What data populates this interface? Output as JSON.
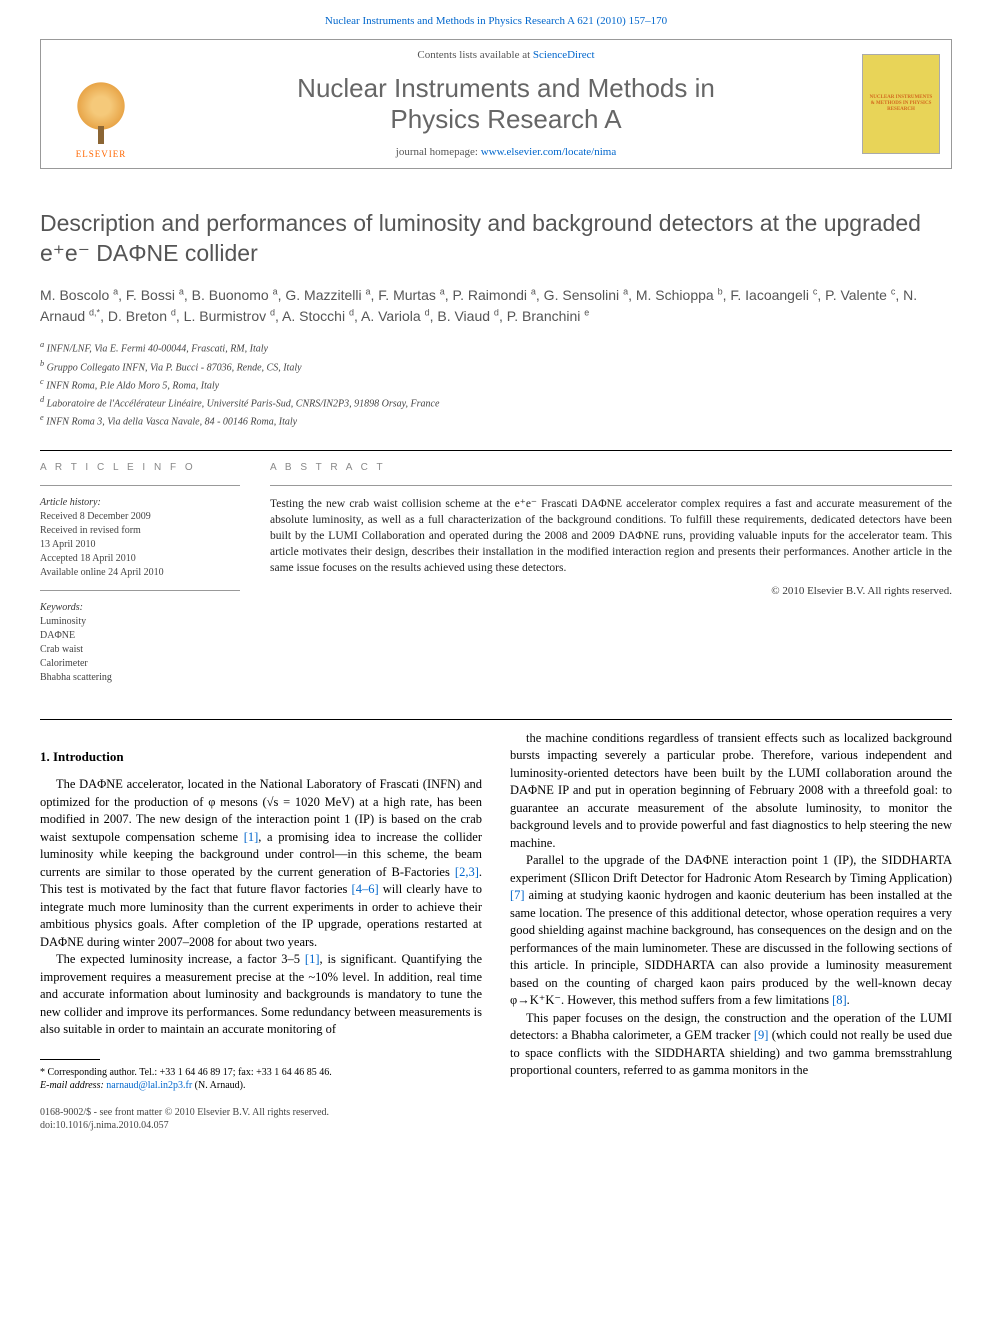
{
  "top_link_prefix": "Nuclear Instruments and Methods in Physics Research A 621 (2010) 157–170",
  "header": {
    "elsevier": "ELSEVIER",
    "contents_prefix": "Contents lists available at ",
    "contents_link": "ScienceDirect",
    "journal_name_l1": "Nuclear Instruments and Methods in",
    "journal_name_l2": "Physics Research A",
    "homepage_prefix": "journal homepage: ",
    "homepage_link": "www.elsevier.com/locate/nima",
    "cover_text": "NUCLEAR INSTRUMENTS & METHODS IN PHYSICS RESEARCH"
  },
  "title": "Description and performances of luminosity and background detectors at the upgraded e⁺e⁻ DAΦNE collider",
  "authors_html": "M. Boscolo <sup>a</sup>, F. Bossi <sup>a</sup>, B. Buonomo <sup>a</sup>, G. Mazzitelli <sup>a</sup>, F. Murtas <sup>a</sup>, P. Raimondi <sup>a</sup>, G. Sensolini <sup>a</sup>, M. Schioppa <sup>b</sup>, F. Iacoangeli <sup>c</sup>, P. Valente <sup>c</sup>, N. Arnaud <sup>d,*</sup>, D. Breton <sup>d</sup>, L. Burmistrov <sup>d</sup>, A. Stocchi <sup>d</sup>, A. Variola <sup>d</sup>, B. Viaud <sup>d</sup>, P. Branchini <sup>e</sup>",
  "affiliations": {
    "a": "INFN/LNF, Via E. Fermi 40-00044, Frascati, RM, Italy",
    "b": "Gruppo Collegato INFN, Via P. Bucci - 87036, Rende, CS, Italy",
    "c": "INFN Roma, P.le Aldo Moro 5, Roma, Italy",
    "d": "Laboratoire de l'Accélérateur Linéaire, Université Paris-Sud, CNRS/IN2P3, 91898 Orsay, France",
    "e": "INFN Roma 3, Via della Vasca Navale, 84 - 00146 Roma, Italy"
  },
  "info": {
    "heading": "A R T I C L E   I N F O",
    "history_title": "Article history:",
    "history_l1": "Received 8 December 2009",
    "history_l2": "Received in revised form",
    "history_l3": "13 April 2010",
    "history_l4": "Accepted 18 April 2010",
    "history_l5": "Available online 24 April 2010",
    "keywords_title": "Keywords:",
    "kw1": "Luminosity",
    "kw2": "DAΦNE",
    "kw3": "Crab waist",
    "kw4": "Calorimeter",
    "kw5": "Bhabha scattering"
  },
  "abstract": {
    "heading": "A B S T R A C T",
    "text": "Testing the new crab waist collision scheme at the e⁺e⁻ Frascati DAΦNE accelerator complex requires a fast and accurate measurement of the absolute luminosity, as well as a full characterization of the background conditions. To fulfill these requirements, dedicated detectors have been built by the LUMI Collaboration and operated during the 2008 and 2009 DAΦNE runs, providing valuable inputs for the accelerator team. This article motivates their design, describes their installation in the modified interaction region and presents their performances. Another article in the same issue focuses on the results achieved using these detectors.",
    "copyright": "© 2010 Elsevier B.V. All rights reserved."
  },
  "body": {
    "section1_heading": "1.  Introduction",
    "p1a": "The DAΦNE accelerator, located in the National Laboratory of Frascati (INFN) and optimized for the production of φ mesons (√s = 1020 MeV) at a high rate, has been modified in 2007. The new design of the interaction point 1 (IP) is based on the crab waist sextupole compensation scheme ",
    "p1_cite1": "[1]",
    "p1b": ", a promising idea to increase the collider luminosity while keeping the background under control—in this scheme, the beam currents are similar to those operated by the current generation of B-Factories ",
    "p1_cite2": "[2,3]",
    "p1c": ". This test is motivated by the fact that future flavor factories ",
    "p1_cite3": "[4–6]",
    "p1d": " will clearly have to integrate much more luminosity than the current experiments in order to achieve their ambitious physics goals. After completion of the IP upgrade, operations restarted at DAΦNE during winter 2007–2008 for about two years.",
    "p2a": "The expected luminosity increase, a factor 3–5 ",
    "p2_cite1": "[1]",
    "p2b": ", is significant. Quantifying the improvement requires a measurement precise at the ~10% level. In addition, real time and accurate information about luminosity and backgrounds is mandatory to tune the new collider and improve its performances. Some redundancy between measurements is also suitable in order to maintain an accurate monitoring of",
    "p3": "the machine conditions regardless of transient effects such as localized background bursts impacting severely a particular probe. Therefore, various independent and luminosity-oriented detectors have been built by the LUMI collaboration around the DAΦNE IP and put in operation beginning of February 2008 with a threefold goal: to guarantee an accurate measurement of the absolute luminosity, to monitor the background levels and to provide powerful and fast diagnostics to help steering the new machine.",
    "p4a": "Parallel to the upgrade of the DAΦNE interaction point 1 (IP), the SIDDHARTA experiment (SIlicon Drift Detector for Hadronic Atom Research by Timing Application) ",
    "p4_cite1": "[7]",
    "p4b": " aiming at studying kaonic hydrogen and kaonic deuterium has been installed at the same location. The presence of this additional detector, whose operation requires a very good shielding against machine background, has consequences on the design and on the performances of the main luminometer. These are discussed in the following sections of this article. In principle, SIDDHARTA can also provide a luminosity measurement based on the counting of charged kaon pairs produced by the well-known decay φ→K⁺K⁻. However, this method suffers from a few limitations ",
    "p4_cite2": "[8]",
    "p4c": ".",
    "p5a": "This paper focuses on the design, the construction and the operation of the LUMI detectors: a Bhabha calorimeter, a GEM tracker ",
    "p5_cite1": "[9]",
    "p5b": " (which could not really be used due to space conflicts with the SIDDHARTA shielding) and two gamma bremsstrahlung proportional counters, referred to as gamma monitors in the"
  },
  "footnote": {
    "corr": "* Corresponding author. Tel.: +33 1 64 46 89 17; fax: +33 1 64 46 85 46.",
    "email_label": "E-mail address: ",
    "email": "narnaud@lal.in2p3.fr",
    "email_who": " (N. Arnaud)."
  },
  "footer": {
    "l1": "0168-9002/$ - see front matter © 2010 Elsevier B.V. All rights reserved.",
    "l2": "doi:10.1016/j.nima.2010.04.057"
  },
  "colors": {
    "link": "#0066cc",
    "heading_gray": "#555555",
    "elsevier_orange": "#ff6600",
    "cover_bg": "#e8d458"
  }
}
